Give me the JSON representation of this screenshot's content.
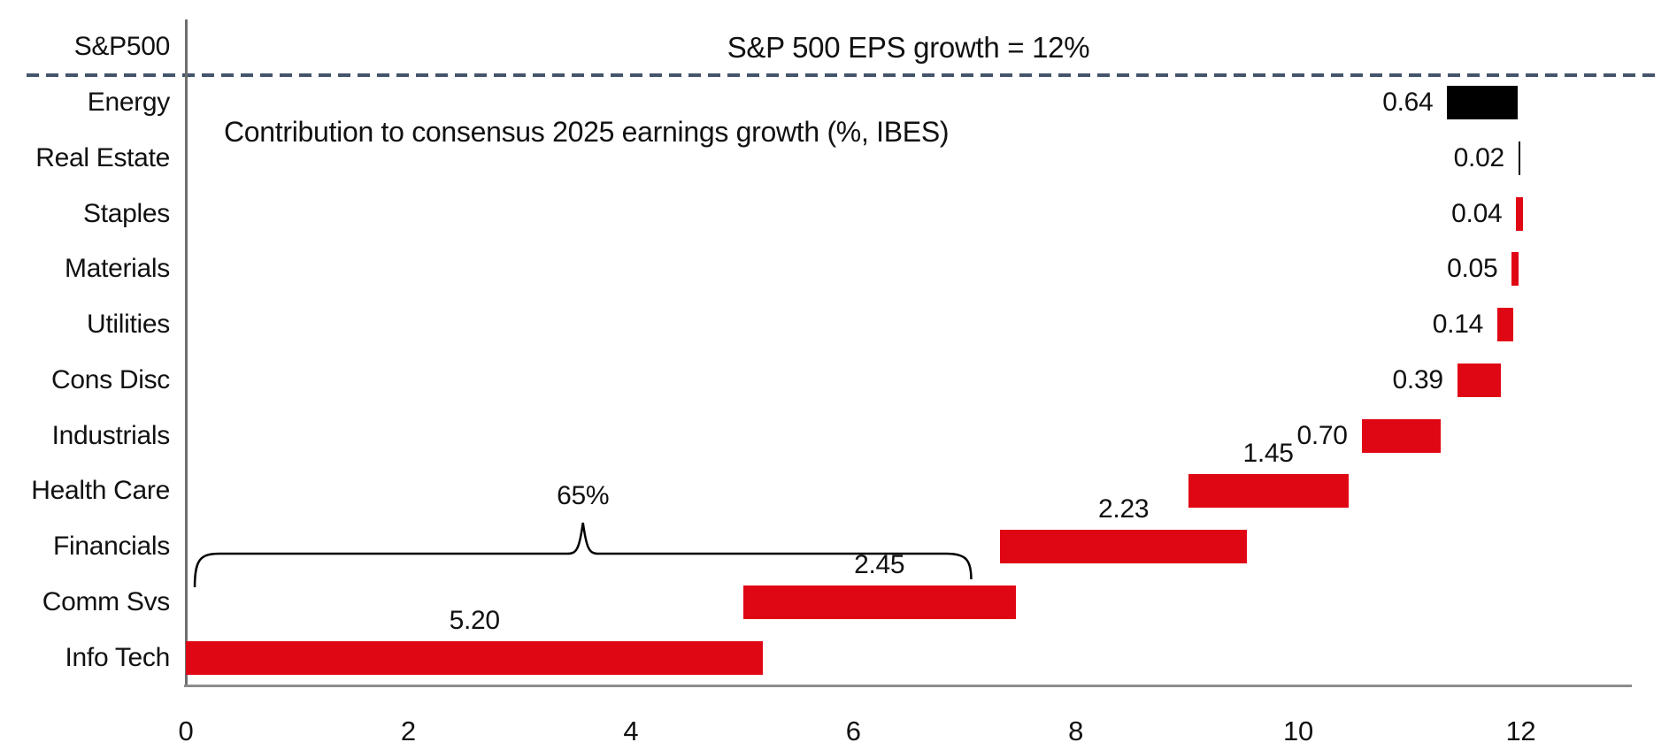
{
  "title": "S&P 500 EPS growth = 12%",
  "subtitle": "Contribution to consensus 2025 earnings growth (%, IBES)",
  "colors": {
    "bar_red": "#e00714",
    "bar_black": "#000000",
    "dashed_line": "#44546a",
    "axis_gray": "#8c8c8c",
    "text": "#111111"
  },
  "chart_data": {
    "type": "bar",
    "subtype": "horizontal-waterfall",
    "title": "S&P 500 EPS growth = 12%",
    "subtitle": "Contribution to consensus 2025 earnings growth (%, IBES)",
    "categories": [
      "S&P500",
      "Energy",
      "Real Estate",
      "Staples",
      "Materials",
      "Utilities",
      "Cons Disc",
      "Industrials",
      "Health Care",
      "Financials",
      "Comm Svs",
      "Info Tech"
    ],
    "target_line": {
      "category": "S&P500",
      "value": 12,
      "label": "S&P 500 EPS growth = 12%",
      "style": "dashed"
    },
    "bars": [
      {
        "category": "Energy",
        "label": "0.64",
        "value": 0.64,
        "start": 11.34,
        "end": 11.97,
        "color": "black",
        "label_side": "left"
      },
      {
        "category": "Real Estate",
        "label": "0.02",
        "value": 0.02,
        "start": 11.98,
        "end": 12.0,
        "color": "black",
        "label_side": "left"
      },
      {
        "category": "Staples",
        "label": "0.04",
        "value": 0.04,
        "start": 11.96,
        "end": 12.02,
        "color": "red",
        "label_side": "left"
      },
      {
        "category": "Materials",
        "label": "0.05",
        "value": 0.05,
        "start": 11.92,
        "end": 11.98,
        "color": "red",
        "label_side": "left"
      },
      {
        "category": "Utilities",
        "label": "0.14",
        "value": 0.14,
        "start": 11.79,
        "end": 11.93,
        "color": "red",
        "label_side": "left"
      },
      {
        "category": "Cons Disc",
        "label": "0.39",
        "value": 0.39,
        "start": 11.43,
        "end": 11.82,
        "color": "red",
        "label_side": "left"
      },
      {
        "category": "Industrials",
        "label": "0.70",
        "value": 0.7,
        "start": 10.57,
        "end": 11.28,
        "color": "red",
        "label_side": "left"
      },
      {
        "category": "Health Care",
        "label": "1.45",
        "value": 1.45,
        "start": 9.01,
        "end": 10.45,
        "color": "red",
        "label_side": "above"
      },
      {
        "category": "Financials",
        "label": "2.23",
        "value": 2.23,
        "start": 7.32,
        "end": 9.54,
        "color": "red",
        "label_side": "above"
      },
      {
        "category": "Comm Svs",
        "label": "2.45",
        "value": 2.45,
        "start": 5.01,
        "end": 7.46,
        "color": "red",
        "label_side": "above"
      },
      {
        "category": "Info Tech",
        "label": "5.20",
        "value": 5.2,
        "start": 0.0,
        "end": 5.19,
        "color": "red",
        "label_side": "above"
      }
    ],
    "bracket": {
      "label": "65%",
      "from": 0.08,
      "to": 7.06
    },
    "x_ticks": [
      "0",
      "2",
      "4",
      "6",
      "8",
      "10",
      "12"
    ],
    "x_tick_values": [
      0,
      2,
      4,
      6,
      8,
      10,
      12
    ],
    "xlim": [
      0,
      13
    ],
    "grid": false,
    "legend": false
  }
}
